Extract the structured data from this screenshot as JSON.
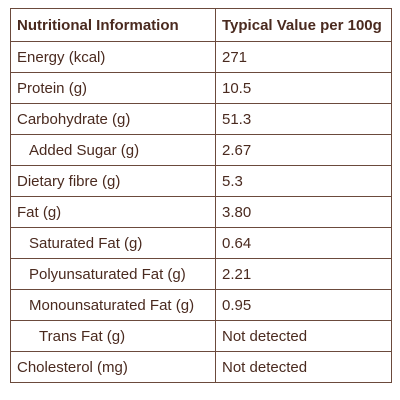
{
  "table": {
    "header": [
      "Nutritional Information",
      "Typical Value per 100g"
    ],
    "rows": [
      [
        "Energy (kcal)",
        "271"
      ],
      [
        "Protein (g)",
        "10.5"
      ],
      [
        "Carbohydrate (g)",
        "51.3"
      ],
      [
        "Added Sugar (g)",
        "2.67"
      ],
      [
        "Dietary fibre (g)",
        "5.3"
      ],
      [
        "Fat (g)",
        "3.80"
      ],
      [
        "Saturated Fat (g)",
        "0.64"
      ],
      [
        "Polyunsaturated Fat (g)",
        "2.21"
      ],
      [
        "Monounsaturated Fat (g)",
        "0.95"
      ],
      [
        "Trans Fat (g)",
        "Not detected"
      ],
      [
        "Cholesterol (mg)",
        "Not detected"
      ]
    ]
  }
}
